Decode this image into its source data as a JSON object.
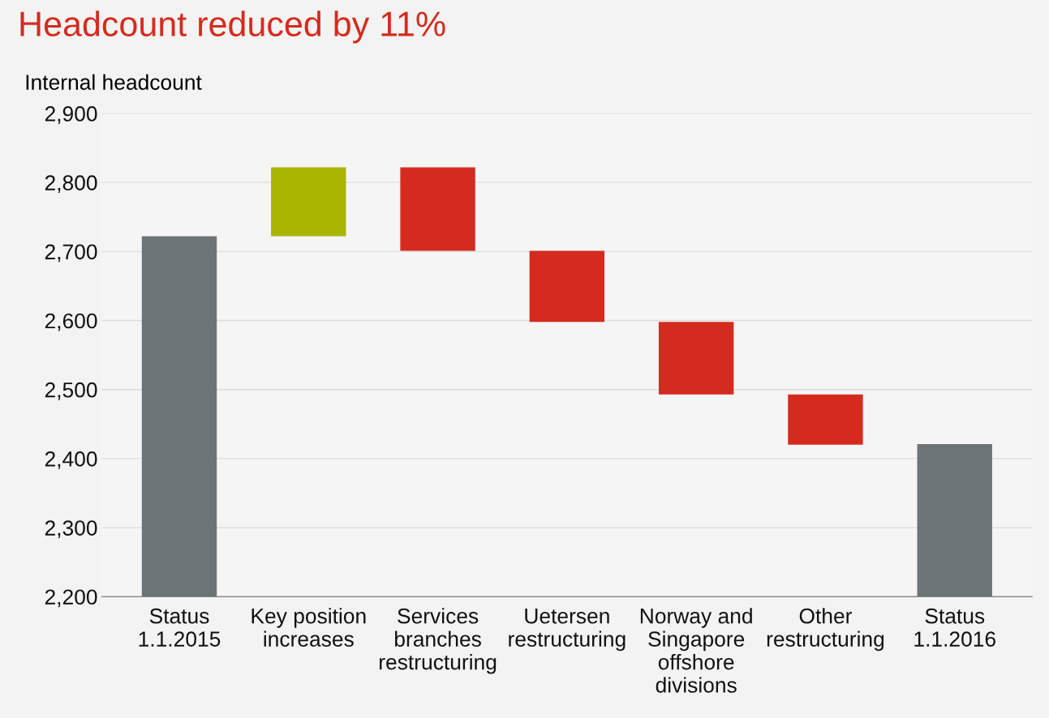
{
  "chart_data": {
    "type": "bar",
    "title": "Headcount reduced by 11%",
    "ylabel": "Internal headcount",
    "categories": [
      "Status\n1.1.2015",
      "Key position\nincreases",
      "Services\nbranches\nrestructuring",
      "Uetersen\nrestructuring",
      "Norway and\nSingapore\noffshore\ndivisions",
      "Other\nrestructuring",
      "Status\n1.1.2016"
    ],
    "values": [
      522,
      100,
      121,
      103,
      105,
      73,
      221
    ],
    "base": [
      2200,
      2722,
      2701,
      2598,
      2493,
      2420,
      2200
    ],
    "colors": [
      "#6d7477",
      "#a8b400",
      "#d52b1e",
      "#d52b1e",
      "#d52b1e",
      "#d52b1e",
      "#6d7477"
    ],
    "ylim": [
      2200,
      2900
    ],
    "yticks": [
      {
        "value": 2200,
        "label": "2,200"
      },
      {
        "value": 2300,
        "label": "2,300"
      },
      {
        "value": 2400,
        "label": "2,400"
      },
      {
        "value": 2500,
        "label": "2,500"
      },
      {
        "value": 2600,
        "label": "2,600"
      },
      {
        "value": 2700,
        "label": "2,700"
      },
      {
        "value": 2800,
        "label": "2,800"
      },
      {
        "value": 2900,
        "label": "2,900"
      }
    ],
    "grid": "y"
  }
}
